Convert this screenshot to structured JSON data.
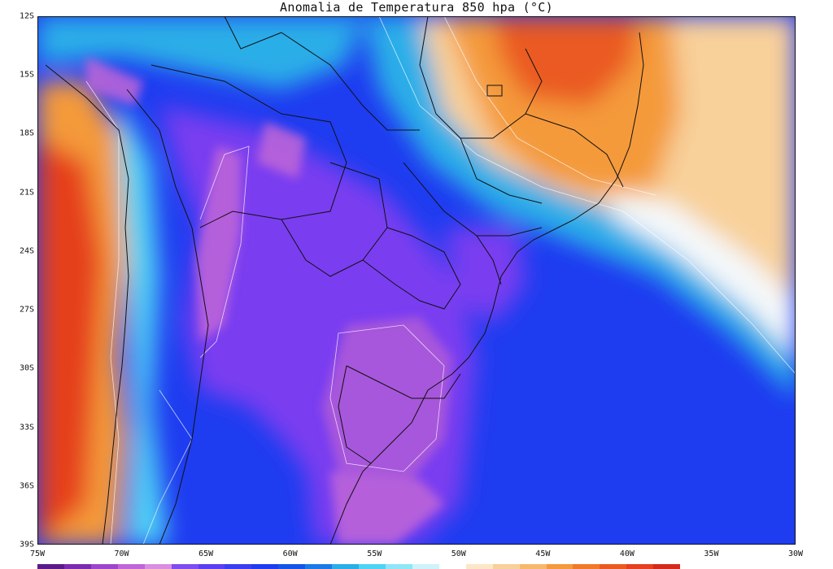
{
  "map": {
    "title": "Anomalia de Temperatura 850 hpa (°C)",
    "lat_ticks": [
      "12S",
      "15S",
      "18S",
      "21S",
      "24S",
      "27S",
      "30S",
      "33S",
      "36S",
      "39S"
    ],
    "lon_ticks": [
      "75W",
      "70W",
      "65W",
      "60W",
      "55W",
      "50W",
      "45W",
      "40W",
      "35W",
      "30W"
    ],
    "lat_range": [
      -39,
      -12
    ],
    "lon_range": [
      -75,
      -30
    ],
    "colors": {
      "deep_cold": "#9a3fcf",
      "purple": "#7a3ef0",
      "blue": "#1e3cf0",
      "light_blue": "#2aaee8",
      "cyan": "#4fd3f5",
      "white": "#f4f8fa",
      "light_orange": "#f8d09a",
      "orange": "#f49a3a",
      "red": "#e5401f"
    },
    "colorbar": [
      "#5a1a8a",
      "#7a2cb0",
      "#9d46cc",
      "#c066d8",
      "#d98ee0",
      "#7f4cf0",
      "#5b3ff2",
      "#3a3ef2",
      "#1e3cf0",
      "#1456e8",
      "#1b7be6",
      "#2aaee8",
      "#4fd3f5",
      "#8fe6f8",
      "#cdf3fb",
      "#ffffff",
      "#fbe7c8",
      "#f8d09a",
      "#f6b86a",
      "#f49a3a",
      "#f07a28",
      "#ea5a20",
      "#e5401f",
      "#d42a1a"
    ]
  }
}
